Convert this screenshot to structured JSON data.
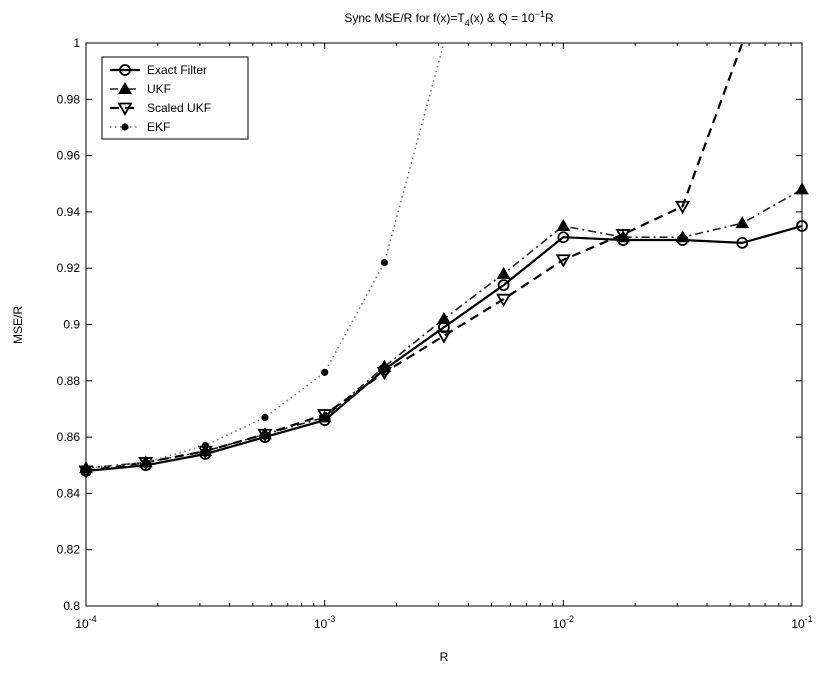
{
  "chart_data": {
    "type": "line",
    "title_parts": {
      "a": "Sync MSE/R for f(x)=T",
      "a_sub": "4",
      "b": "(x) & Q = 10",
      "b_sup": "−1",
      "c": "R"
    },
    "xlabel": "R",
    "ylabel": "MSE/R",
    "x_scale": "log",
    "xlim": [
      0.0001,
      0.1
    ],
    "ylim": [
      0.8,
      1.0
    ],
    "grid": false,
    "legend_position": "top-left",
    "x_ticks": [
      {
        "value": 0.0001,
        "base": "10",
        "exp": "-4"
      },
      {
        "value": 0.001,
        "base": "10",
        "exp": "-3"
      },
      {
        "value": 0.01,
        "base": "10",
        "exp": "-2"
      },
      {
        "value": 0.1,
        "base": "10",
        "exp": "-1"
      }
    ],
    "y_ticks": [
      {
        "value": 0.8,
        "label": "0.8"
      },
      {
        "value": 0.82,
        "label": "0.82"
      },
      {
        "value": 0.84,
        "label": "0.84"
      },
      {
        "value": 0.86,
        "label": "0.86"
      },
      {
        "value": 0.88,
        "label": "0.88"
      },
      {
        "value": 0.9,
        "label": "0.9"
      },
      {
        "value": 0.92,
        "label": "0.92"
      },
      {
        "value": 0.94,
        "label": "0.94"
      },
      {
        "value": 0.96,
        "label": "0.96"
      },
      {
        "value": 0.98,
        "label": "0.98"
      },
      {
        "value": 1.0,
        "label": "1"
      }
    ],
    "x": [
      0.0001,
      0.000178,
      0.000316,
      0.000562,
      0.001,
      0.00178,
      0.00316,
      0.00562,
      0.01,
      0.0178,
      0.0316,
      0.0562,
      0.1
    ],
    "series": [
      {
        "name": "Exact Filter",
        "line_style": "solid",
        "marker": "circle",
        "y": [
          0.848,
          0.85,
          0.854,
          0.86,
          0.866,
          0.884,
          0.899,
          0.914,
          0.931,
          0.93,
          0.93,
          0.929,
          0.935
        ]
      },
      {
        "name": "UKF",
        "line_style": "dashdot",
        "marker": "triangle-up",
        "y": [
          0.849,
          0.851,
          0.855,
          0.861,
          0.867,
          0.885,
          0.902,
          0.918,
          0.935,
          0.931,
          0.931,
          0.936,
          0.948
        ]
      },
      {
        "name": "Scaled UKF",
        "line_style": "dashed",
        "marker": "triangle-down",
        "y": [
          0.848,
          0.851,
          0.855,
          0.861,
          0.868,
          0.883,
          0.896,
          0.909,
          0.923,
          0.932,
          0.942,
          1.0,
          null
        ]
      },
      {
        "name": "EKF",
        "line_style": "dotted",
        "marker": "dot",
        "y": [
          0.849,
          0.851,
          0.857,
          0.867,
          0.883,
          0.922,
          1.0,
          null,
          null,
          null,
          null,
          null,
          null
        ]
      }
    ]
  }
}
